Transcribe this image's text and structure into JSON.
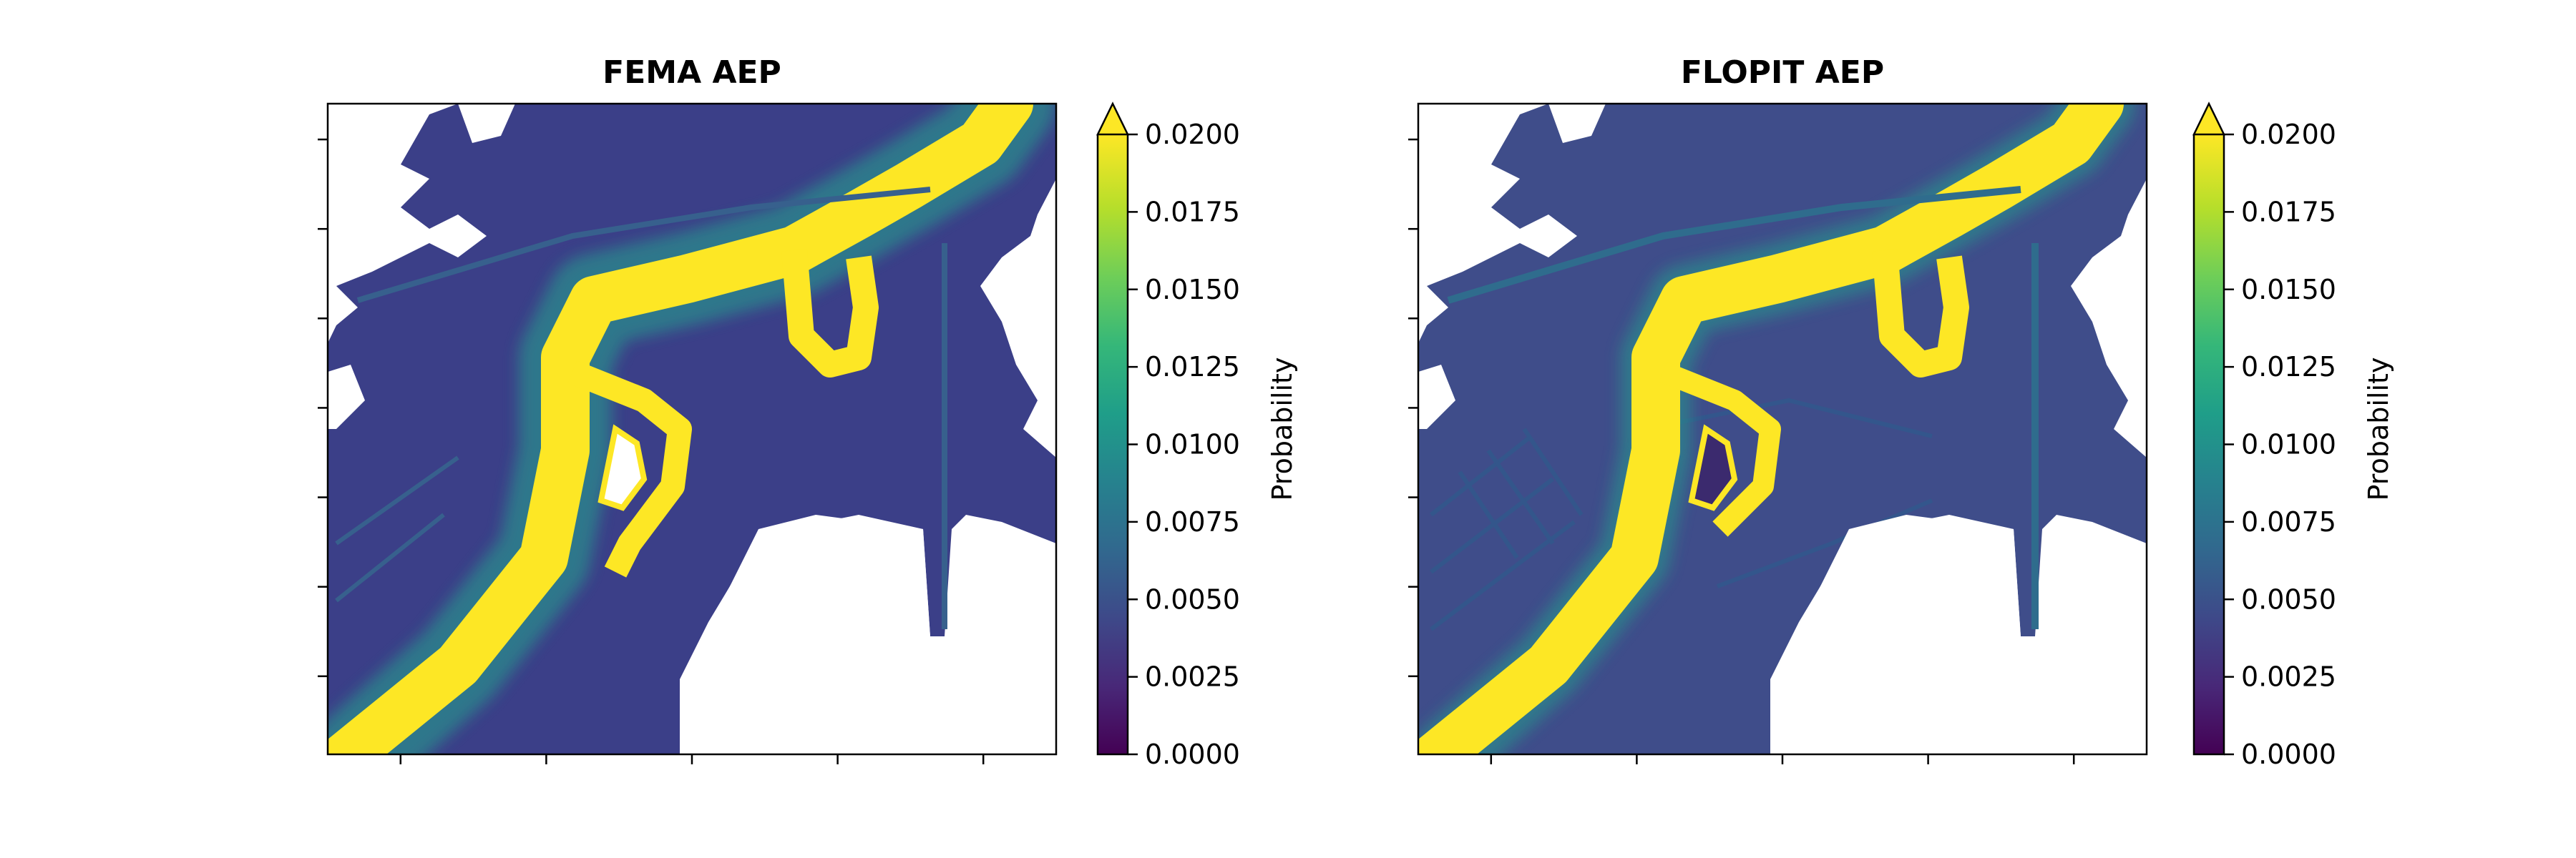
{
  "chart_data": [
    {
      "type": "heatmap",
      "title": "FEMA AEP",
      "colorbar": {
        "label": "Probability",
        "colormap": "viridis",
        "range": [
          0.0,
          0.02
        ],
        "ticks": [
          "0.0000",
          "0.0025",
          "0.0050",
          "0.0075",
          "0.0100",
          "0.0125",
          "0.0150",
          "0.0175",
          "0.0200"
        ],
        "extend": "max"
      },
      "x_tick_count": 5,
      "y_tick_count": 7,
      "tick_labels_shown": false
    },
    {
      "type": "heatmap",
      "title": "FLOPIT AEP",
      "colorbar": {
        "label": "Probability",
        "colormap": "viridis",
        "range": [
          0.0,
          0.02
        ],
        "ticks": [
          "0.0000",
          "0.0025",
          "0.0050",
          "0.0075",
          "0.0100",
          "0.0125",
          "0.0150",
          "0.0175",
          "0.0200"
        ],
        "extend": "max"
      },
      "x_tick_count": 5,
      "y_tick_count": 7,
      "tick_labels_shown": false
    }
  ],
  "colors": {
    "viridis_stops": [
      "#440154",
      "#482878",
      "#3e4989",
      "#31688e",
      "#26828e",
      "#1f9e89",
      "#35b779",
      "#6ece58",
      "#b5de2b",
      "#fde725"
    ],
    "high_value": "#fde725",
    "low_value": "#3b3f88",
    "mid_value": "#31688e",
    "masked": "#ffffff"
  }
}
